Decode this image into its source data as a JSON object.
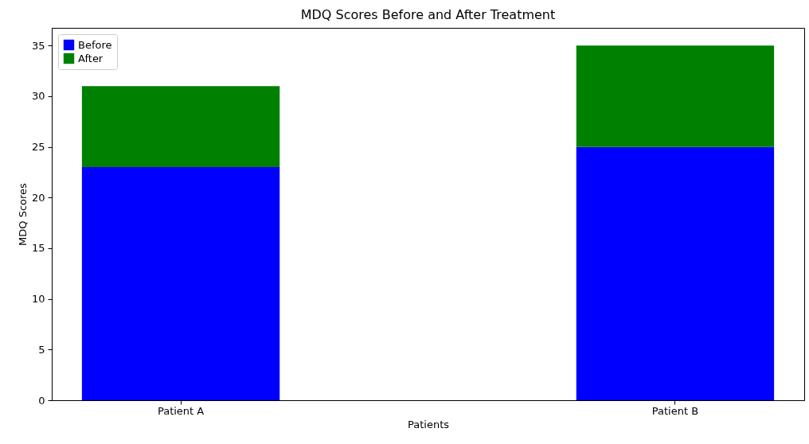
{
  "chart_data": {
    "type": "bar",
    "title": "MDQ Scores Before and After Treatment",
    "xlabel": "Patients",
    "ylabel": "MDQ Scores",
    "categories": [
      "Patient A",
      "Patient B"
    ],
    "series": [
      {
        "name": "Before",
        "color": "#0000ff",
        "values": [
          23,
          25
        ]
      },
      {
        "name": "After",
        "color": "#008000",
        "values": [
          8,
          10
        ]
      }
    ],
    "stacked": true,
    "ylim": [
      0,
      36.75
    ],
    "yticks": [
      0,
      5,
      10,
      15,
      20,
      25,
      30,
      35
    ],
    "grid": false,
    "legend": "top left"
  }
}
